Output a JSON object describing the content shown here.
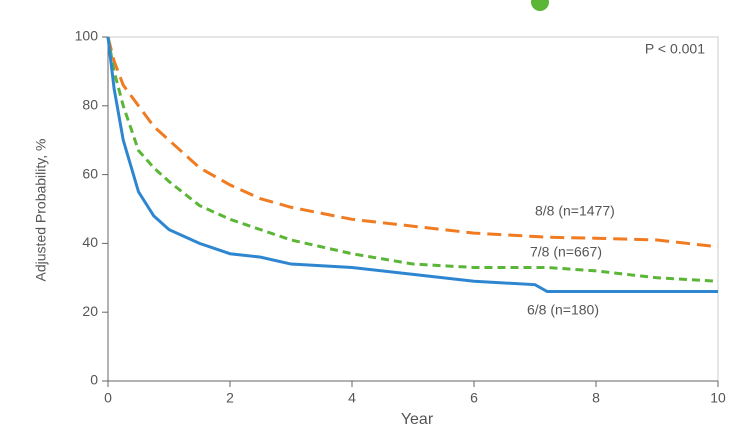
{
  "chart_data": {
    "type": "line",
    "ylabel": "Adjusted Probability, %",
    "xlabel": "Year",
    "annotation": "P < 0.001",
    "x": [
      0,
      0.1,
      0.25,
      0.5,
      0.75,
      1,
      1.5,
      2,
      2.5,
      3,
      4,
      5,
      6,
      7,
      7.2,
      8,
      9,
      10
    ],
    "series": [
      {
        "name": "8/8 (n=1477)",
        "color": "#f07b21",
        "dash": "long",
        "values": [
          100,
          93,
          86,
          80,
          74,
          70,
          62,
          57,
          53,
          50.5,
          47,
          45,
          43,
          42,
          41.8,
          41.5,
          41,
          39
        ]
      },
      {
        "name": "7/8 (n=667)",
        "color": "#5bb537",
        "dash": "short",
        "values": [
          100,
          90,
          80,
          67,
          62,
          58,
          51,
          47,
          44,
          41,
          37,
          34,
          33,
          33,
          33,
          32,
          30,
          29
        ]
      },
      {
        "name": "6/8 (n=180)",
        "color": "#2e86d1",
        "dash": "solid",
        "values": [
          100,
          85,
          70,
          55,
          48,
          44,
          40,
          37,
          36,
          34,
          33,
          31,
          29,
          28,
          26,
          26,
          26,
          26
        ]
      }
    ],
    "xlim": [
      0,
      10
    ],
    "xticks": [
      0,
      2,
      4,
      6,
      8,
      10
    ],
    "ylim": [
      0,
      100
    ],
    "yticks": [
      0,
      20,
      40,
      60,
      80,
      100
    ]
  }
}
